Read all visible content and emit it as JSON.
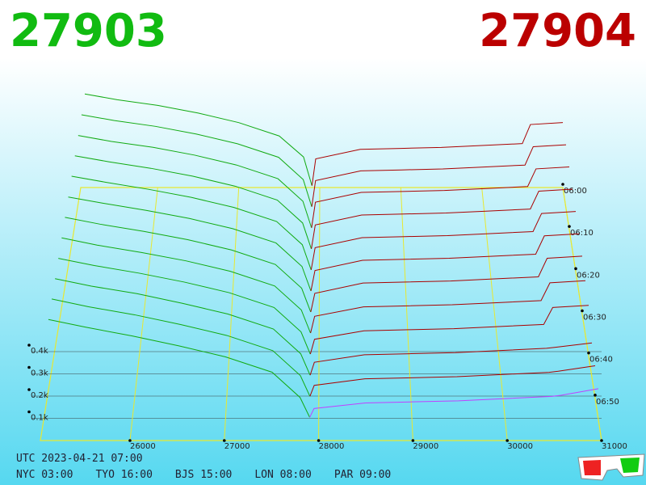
{
  "header": {
    "bid": "27903",
    "ask": "27904"
  },
  "chart_data": {
    "type": "depth3d",
    "xlim": [
      25050,
      31000
    ],
    "xticks": [
      26000,
      27000,
      28000,
      29000,
      30000,
      31000
    ],
    "ylim": [
      0,
      500
    ],
    "yticks": [
      {
        "value": 100,
        "label": "0.1k"
      },
      {
        "value": 200,
        "label": "0.2k"
      },
      {
        "value": 300,
        "label": "0.3k"
      },
      {
        "value": 400,
        "label": "0.4k"
      }
    ],
    "zlim": [
      0,
      60
    ],
    "zticks": [
      {
        "value": 0,
        "label": "06:00"
      },
      {
        "value": 10,
        "label": "06:10"
      },
      {
        "value": 20,
        "label": "06:20"
      },
      {
        "value": 30,
        "label": "06:30"
      },
      {
        "value": 40,
        "label": "06:40"
      },
      {
        "value": 50,
        "label": "06:50"
      }
    ],
    "grid_color": "#e8e830",
    "latest_color": "#c040ff",
    "bids": {
      "color": "#11aa11",
      "prices": [
        25100,
        25500,
        26000,
        26500,
        27000,
        27500,
        27800,
        27903
      ],
      "snapshots": [
        {
          "t": 0,
          "values": [
            490,
            460,
            430,
            390,
            340,
            270,
            160,
            10
          ]
        },
        {
          "t": 5,
          "values": [
            485,
            455,
            425,
            385,
            335,
            265,
            150,
            10
          ]
        },
        {
          "t": 10,
          "values": [
            480,
            450,
            420,
            380,
            330,
            260,
            145,
            10
          ]
        },
        {
          "t": 15,
          "values": [
            478,
            448,
            415,
            375,
            325,
            255,
            140,
            10
          ]
        },
        {
          "t": 20,
          "values": [
            475,
            445,
            410,
            370,
            320,
            250,
            135,
            10
          ]
        },
        {
          "t": 25,
          "values": [
            470,
            440,
            405,
            365,
            315,
            245,
            130,
            10
          ]
        },
        {
          "t": 30,
          "values": [
            468,
            435,
            400,
            360,
            310,
            240,
            125,
            10
          ]
        },
        {
          "t": 35,
          "values": [
            465,
            430,
            395,
            355,
            305,
            235,
            120,
            10
          ]
        },
        {
          "t": 40,
          "values": [
            462,
            428,
            392,
            350,
            300,
            230,
            115,
            10
          ]
        },
        {
          "t": 45,
          "values": [
            460,
            425,
            390,
            345,
            295,
            225,
            110,
            10
          ]
        },
        {
          "t": 50,
          "values": [
            458,
            422,
            385,
            340,
            290,
            220,
            105,
            10
          ]
        },
        {
          "t": 55,
          "values": [
            455,
            420,
            380,
            335,
            285,
            215,
            100,
            10
          ]
        }
      ]
    },
    "asks": {
      "color": "#aa0000",
      "prices": [
        27904,
        27950,
        28500,
        29000,
        29500,
        30000,
        30500,
        30600,
        31000
      ],
      "snapshots": [
        {
          "t": 0,
          "values": [
            10,
            150,
            200,
            205,
            210,
            220,
            230,
            330,
            340
          ]
        },
        {
          "t": 5,
          "values": [
            10,
            145,
            195,
            200,
            205,
            215,
            225,
            320,
            330
          ]
        },
        {
          "t": 10,
          "values": [
            10,
            140,
            190,
            195,
            200,
            210,
            220,
            310,
            320
          ]
        },
        {
          "t": 15,
          "values": [
            10,
            130,
            180,
            185,
            190,
            200,
            210,
            300,
            310
          ]
        },
        {
          "t": 20,
          "values": [
            10,
            120,
            170,
            175,
            180,
            190,
            200,
            290,
            300
          ]
        },
        {
          "t": 25,
          "values": [
            10,
            110,
            160,
            165,
            170,
            180,
            190,
            280,
            290
          ]
        },
        {
          "t": 30,
          "values": [
            10,
            100,
            150,
            155,
            160,
            170,
            180,
            270,
            280
          ]
        },
        {
          "t": 35,
          "values": [
            10,
            90,
            135,
            140,
            145,
            155,
            165,
            250,
            260
          ]
        },
        {
          "t": 40,
          "values": [
            10,
            80,
            120,
            125,
            130,
            140,
            150,
            230,
            240
          ]
        },
        {
          "t": 45,
          "values": [
            10,
            70,
            105,
            110,
            115,
            125,
            135,
            140,
            160
          ]
        },
        {
          "t": 50,
          "values": [
            10,
            60,
            90,
            95,
            100,
            110,
            120,
            125,
            150
          ]
        },
        {
          "t": 55,
          "values": [
            10,
            50,
            75,
            80,
            85,
            95,
            105,
            110,
            140
          ]
        }
      ]
    }
  },
  "footer": {
    "utc": "UTC 2023-04-21 07:00",
    "cities": [
      "NYC 03:00",
      "TYO 16:00",
      "BJS 15:00",
      "LON 08:00",
      "PAR 09:00"
    ]
  }
}
